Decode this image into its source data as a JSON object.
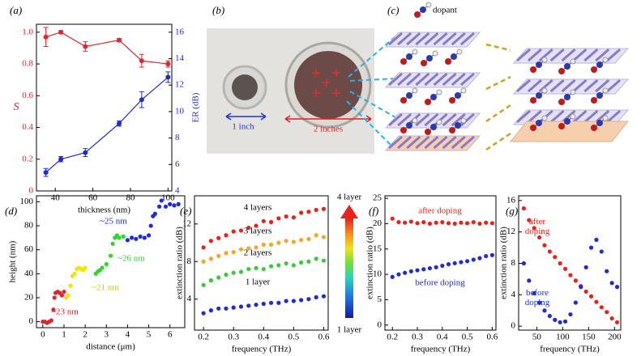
{
  "chart_data": [
    {
      "type": "line",
      "panel_label": "(a)",
      "xlabel": "thickness (nm)",
      "ylabel": "S",
      "y2label": "ER (dB)",
      "xlim": [
        30,
        102
      ],
      "xticks": [
        40,
        60,
        80,
        100
      ],
      "ylim": [
        0,
        1.05
      ],
      "yticks": [
        0,
        0.2,
        0.4,
        0.6,
        0.8,
        {
          "value": 1,
          "label": "1.0"
        }
      ],
      "y2lim": [
        4,
        16.6
      ],
      "y2ticks": [
        4,
        6,
        8,
        10,
        12,
        14,
        16
      ],
      "x": [
        35,
        43,
        56,
        74,
        86,
        100
      ],
      "series": [
        {
          "name": "S",
          "color": "#e0262b",
          "values": [
            0.97,
            1.0,
            0.91,
            0.95,
            0.82,
            0.8
          ],
          "errors": [
            0.06,
            0.01,
            0.03,
            0.01,
            0.04,
            0.02
          ]
        },
        {
          "name": "ER",
          "color": "#1f2bc8",
          "axis": "y2",
          "values": [
            5.4,
            6.4,
            6.9,
            9.1,
            10.9,
            12.6
          ],
          "errors": [
            0.3,
            0.2,
            0.3,
            0.2,
            0.6,
            0.4
          ]
        }
      ]
    },
    {
      "type": "scatter",
      "panel_label": "(d)",
      "xlabel": "distance (μm)",
      "ylabel": "height (nm)",
      "xlim": [
        -0.3,
        6.7
      ],
      "xticks": [
        0,
        1,
        2,
        3,
        4,
        5,
        6
      ],
      "ylim": [
        -5,
        105
      ],
      "yticks": [
        0,
        20,
        40,
        60,
        80,
        100
      ],
      "series": [
        {
          "name": "~23 nm",
          "color": "#e0262b",
          "x": [
            0,
            0.1,
            0.2,
            0.3,
            0.4,
            0.5,
            0.55,
            0.6,
            0.7,
            0.8,
            0.9,
            1.0
          ],
          "values": [
            0,
            0,
            -1,
            0,
            1,
            10,
            20,
            24,
            25,
            24,
            22,
            25
          ]
        },
        {
          "name": "~21 nm",
          "color": "#f2e600",
          "x": [
            1.1,
            1.2,
            1.3,
            1.4,
            1.5,
            1.6,
            1.7,
            1.8,
            1.9,
            2.0
          ],
          "values": [
            20,
            22,
            30,
            38,
            40,
            44,
            45,
            44,
            43,
            45
          ]
        },
        {
          "name": "~26 nm",
          "color": "#2fd62f",
          "x": [
            2.5,
            2.6,
            2.7,
            2.8,
            3.0,
            3.2,
            3.3,
            3.4,
            3.5,
            3.6,
            3.8
          ],
          "values": [
            40,
            42,
            43,
            45,
            48,
            55,
            65,
            70,
            72,
            70,
            71
          ]
        },
        {
          "name": "~25 nm",
          "color": "#1f2bd6",
          "x": [
            4.0,
            4.2,
            4.4,
            4.6,
            4.8,
            5.0,
            5.1,
            5.2,
            5.3,
            5.5,
            5.6,
            5.8,
            6.0,
            6.2,
            6.4
          ],
          "values": [
            68,
            70,
            69,
            71,
            70,
            72,
            80,
            88,
            90,
            96,
            101,
            96,
            98,
            97,
            98
          ]
        }
      ]
    },
    {
      "type": "scatter",
      "panel_label": "(e)",
      "xlabel": "frequency (THz)",
      "ylabel": "extinction ratio (dB)",
      "xlim": [
        0.17,
        0.615
      ],
      "xticks": [
        0.2,
        0.3,
        0.4,
        0.5,
        0.6
      ],
      "ylim": [
        0.7,
        15
      ],
      "yticks": [
        4,
        8,
        12
      ],
      "colorbar_labels": [
        "4 layer",
        "1 layer"
      ],
      "x": [
        0.2,
        0.225,
        0.25,
        0.275,
        0.3,
        0.325,
        0.35,
        0.375,
        0.4,
        0.425,
        0.45,
        0.475,
        0.5,
        0.525,
        0.55,
        0.575,
        0.6
      ],
      "series": [
        {
          "name": "4 layers",
          "color": "#e8221b",
          "values": [
            9.5,
            10.2,
            10.5,
            10.8,
            11.2,
            11.3,
            11.6,
            11.8,
            12.3,
            12.2,
            12.6,
            12.8,
            12.7,
            13.2,
            13.3,
            13.5,
            13.6
          ]
        },
        {
          "name": "3 layers",
          "color": "#f5a623",
          "values": [
            8.0,
            8.3,
            8.6,
            8.9,
            9.0,
            9.3,
            9.4,
            9.5,
            9.8,
            9.8,
            10.0,
            10.2,
            10.1,
            10.3,
            10.4,
            10.8,
            10.6
          ]
        },
        {
          "name": "2 layers",
          "color": "#3cc83c",
          "values": [
            5.5,
            6.0,
            6.3,
            6.6,
            6.8,
            6.9,
            7.2,
            7.3,
            7.2,
            7.5,
            7.6,
            7.8,
            7.6,
            7.9,
            8.0,
            8.3,
            8.1
          ]
        },
        {
          "name": "1 layer",
          "color": "#1f2bd6",
          "values": [
            2.5,
            2.8,
            3.0,
            3.0,
            3.1,
            3.2,
            3.3,
            3.4,
            3.5,
            3.6,
            3.6,
            3.8,
            3.8,
            3.9,
            4.0,
            4.2,
            4.3
          ]
        }
      ]
    },
    {
      "type": "scatter",
      "panel_label": "(f)",
      "xlabel": "frequency (THz)",
      "ylabel": "extinction ratio (dB)",
      "xlim": [
        0.17,
        0.615
      ],
      "xticks": [
        0.2,
        0.3,
        0.4,
        0.5,
        0.6
      ],
      "ylim": [
        -1,
        25.5
      ],
      "yticks": [
        0,
        5,
        10,
        15,
        20,
        25
      ],
      "x": [
        0.2,
        0.225,
        0.25,
        0.275,
        0.3,
        0.325,
        0.35,
        0.375,
        0.4,
        0.425,
        0.45,
        0.475,
        0.5,
        0.525,
        0.55,
        0.575,
        0.6
      ],
      "series": [
        {
          "name": "after doping",
          "color": "#e8221b",
          "values": [
            21,
            20.3,
            20.2,
            20.4,
            20.1,
            20.3,
            20.0,
            20.2,
            20.3,
            20.1,
            20.0,
            20.2,
            20.1,
            20.3,
            20.0,
            20.2,
            20.1
          ]
        },
        {
          "name": "before doping",
          "color": "#1f2bd6",
          "values": [
            9.5,
            10,
            10.3,
            10.6,
            10.8,
            11,
            11.2,
            11.4,
            11.7,
            12,
            12.2,
            12.4,
            12.6,
            12.9,
            13.2,
            13.6,
            13.8
          ]
        }
      ]
    },
    {
      "type": "scatter",
      "panel_label": "(g)",
      "xlabel": "frequency (THz)",
      "ylabel": "extinction ratio (dB)",
      "xlim": [
        15,
        212
      ],
      "xticks": [
        50,
        100,
        150,
        200
      ],
      "ylim": [
        -0.5,
        16.6
      ],
      "yticks": [
        0,
        4,
        8,
        12,
        16
      ],
      "x": [
        25,
        35,
        45,
        55,
        65,
        75,
        85,
        95,
        105,
        115,
        125,
        135,
        145,
        155,
        165,
        175,
        185,
        195,
        205
      ],
      "series": [
        {
          "name": "after doping",
          "color": "#e8221b",
          "values": [
            15,
            13.5,
            12.5,
            11.3,
            10.3,
            9.5,
            8.8,
            8.0,
            7.3,
            6.5,
            5.8,
            5.1,
            4.4,
            3.8,
            3.1,
            2.4,
            1.8,
            1.0,
            0.5
          ]
        },
        {
          "name": "before doping",
          "color": "#1f2bd6",
          "values": [
            8,
            5.8,
            4.2,
            3.0,
            2.0,
            1.3,
            0.8,
            0.5,
            0.6,
            1.5,
            3.0,
            5.0,
            7.5,
            10,
            11,
            9.5,
            7,
            5.5,
            5
          ]
        }
      ]
    }
  ],
  "photo": {
    "panel_label": "(b)",
    "labels": [
      "1 inch",
      "2 inches"
    ]
  },
  "diagram": {
    "panel_label": "(c)",
    "legend": "dopant"
  }
}
